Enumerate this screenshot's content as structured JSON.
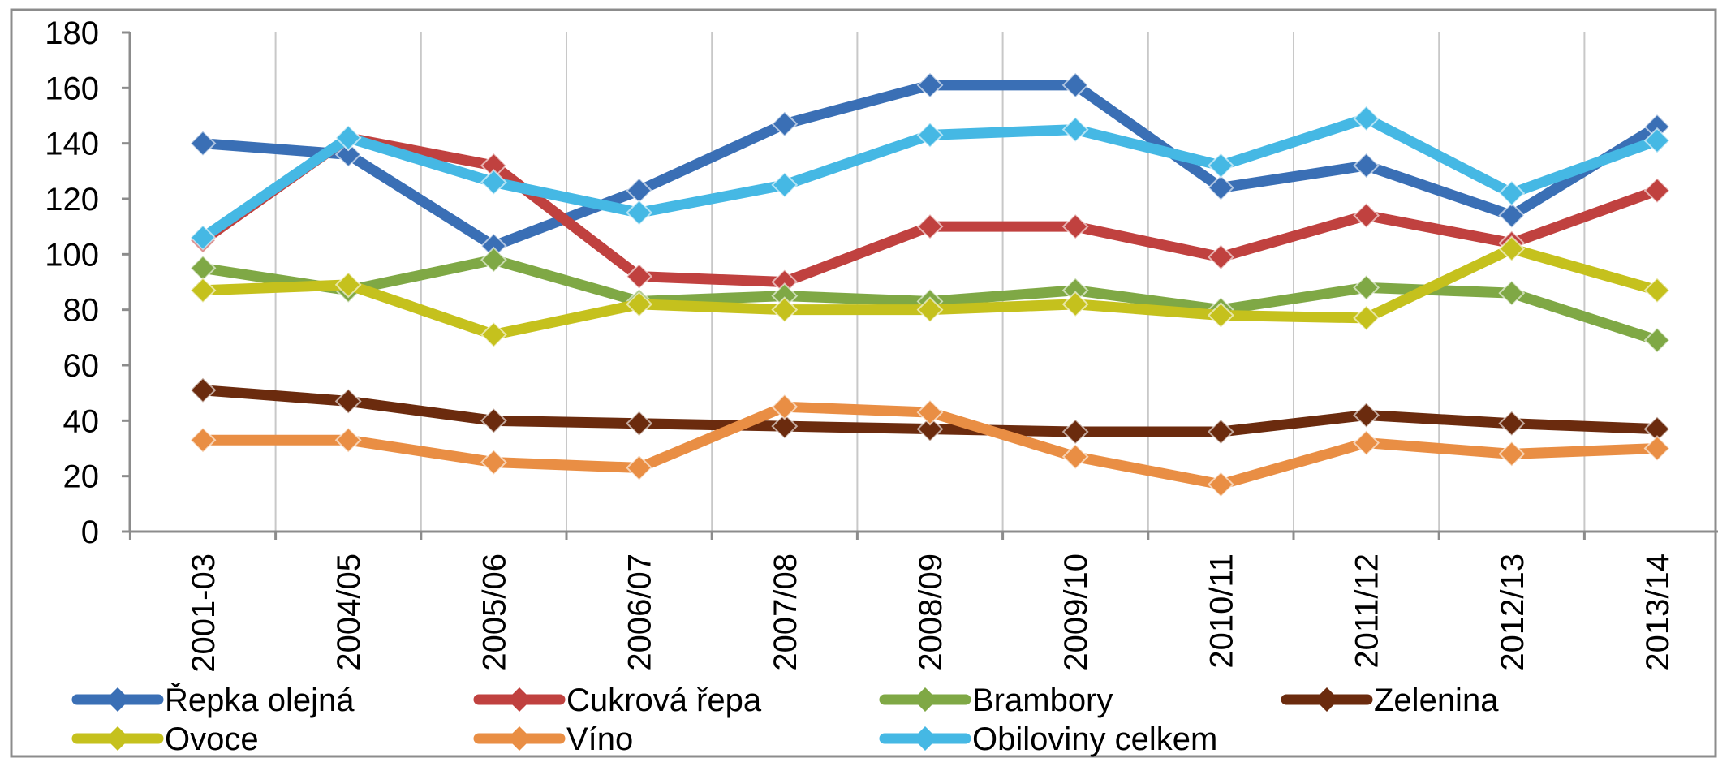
{
  "chart_data": {
    "type": "line",
    "title": "",
    "xlabel": "",
    "ylabel": "",
    "categories": [
      "2001-03",
      "2004/05",
      "2005/06",
      "2006/07",
      "2007/08",
      "2008/09",
      "2009/10",
      "2010/11",
      "2011/12",
      "2012/13",
      "2013/14"
    ],
    "ylim": [
      0,
      180
    ],
    "yticks": [
      0,
      20,
      40,
      60,
      80,
      100,
      120,
      140,
      160,
      180
    ],
    "grid": "vertical",
    "legend_position": "bottom",
    "series": [
      {
        "name": "Řepka olejná",
        "color": "#3a6fb5",
        "values": [
          140,
          136,
          103,
          123,
          147,
          161,
          161,
          124,
          132,
          114,
          146
        ]
      },
      {
        "name": "Cukrová řepa",
        "color": "#c0413f",
        "values": [
          105,
          142,
          132,
          92,
          90,
          110,
          110,
          99,
          114,
          104,
          123
        ]
      },
      {
        "name": "Brambory",
        "color": "#7fa845",
        "values": [
          95,
          87,
          98,
          83,
          85,
          83,
          87,
          80,
          88,
          86,
          69
        ]
      },
      {
        "name": "Zelenina",
        "color": "#6b2b0e",
        "values": [
          51,
          47,
          40,
          39,
          38,
          37,
          36,
          36,
          42,
          39,
          37
        ]
      },
      {
        "name": "Ovoce",
        "color": "#c5c11d",
        "values": [
          87,
          89,
          71,
          82,
          80,
          80,
          82,
          78,
          77,
          102,
          87
        ]
      },
      {
        "name": "Víno",
        "color": "#e98e44",
        "values": [
          33,
          33,
          25,
          23,
          45,
          43,
          27,
          17,
          32,
          28,
          30
        ]
      },
      {
        "name": "Obiloviny celkem",
        "color": "#45b8e4",
        "values": [
          106,
          142,
          126,
          115,
          125,
          143,
          145,
          132,
          149,
          122,
          141
        ]
      }
    ]
  }
}
